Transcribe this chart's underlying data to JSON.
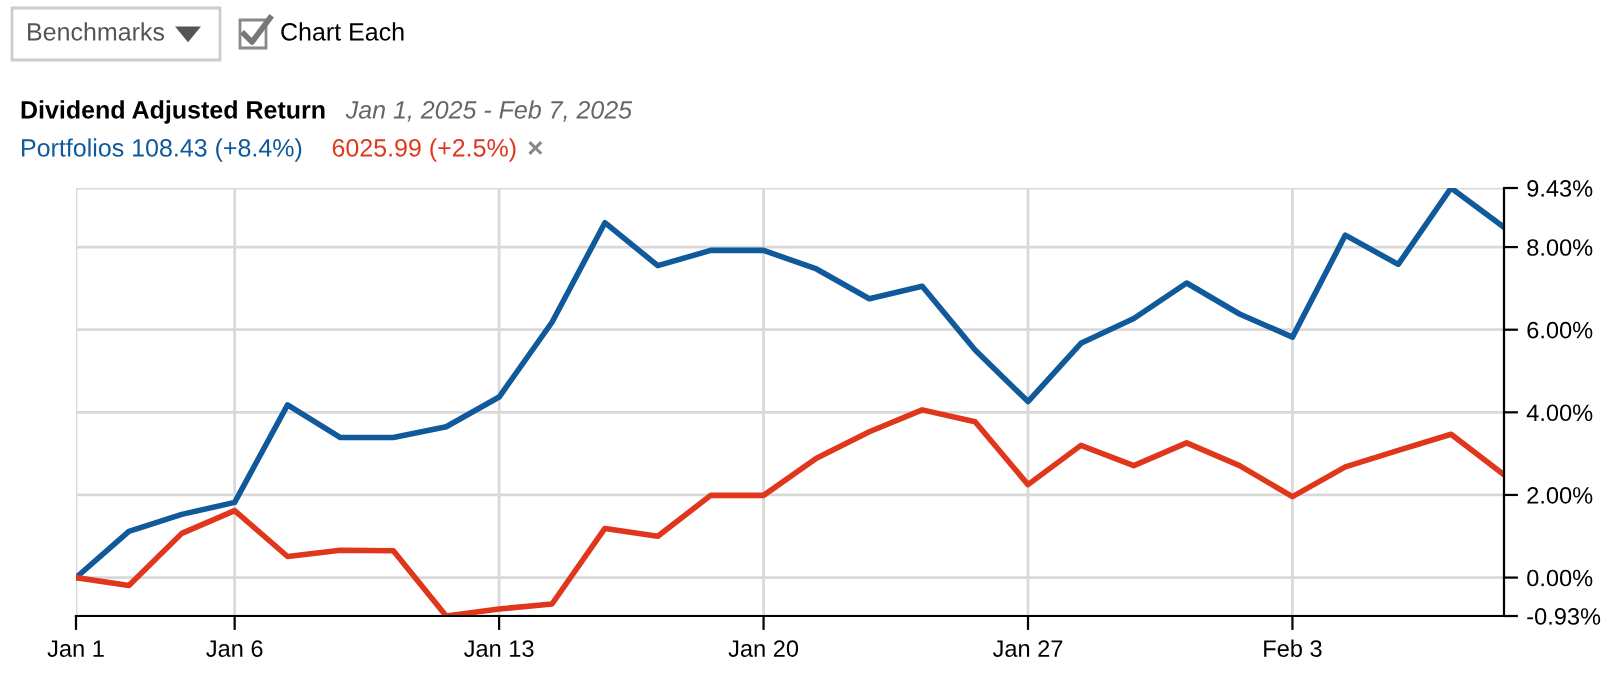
{
  "chart_data": {
    "type": "line",
    "title": "Dividend Adjusted Return",
    "subtitle": "Jan 1, 2025 - Feb 7, 2025",
    "annotations": [
      "Benchmarks",
      "Chart Each",
      "×"
    ],
    "categories": [
      "Jan 1",
      null,
      null,
      "Jan 6",
      null,
      null,
      null,
      null,
      "Jan 13",
      null,
      null,
      null,
      null,
      "Jan 20",
      null,
      null,
      null,
      null,
      "Jan 27",
      null,
      null,
      null,
      null,
      "Feb 3",
      null,
      null,
      null,
      null
    ],
    "series": [
      {
        "name": "Portfolios 108.43 (+8.4%)",
        "color": "#10599a",
        "values": [
          0.0,
          1.12,
          1.53,
          1.82,
          4.18,
          3.39,
          3.39,
          3.65,
          4.37,
          6.18,
          8.59,
          7.55,
          7.92,
          7.92,
          7.47,
          6.75,
          7.05,
          5.51,
          4.26,
          5.67,
          6.27,
          7.13,
          6.38,
          5.82,
          8.29,
          7.58,
          9.43,
          8.48
        ]
      },
      {
        "name": "6025.99 (+2.5%)",
        "color": "#e0361c",
        "values": [
          0.0,
          -0.19,
          1.07,
          1.62,
          0.51,
          0.66,
          0.65,
          -0.93,
          -0.76,
          -0.64,
          1.19,
          1.0,
          1.99,
          1.99,
          2.89,
          3.53,
          4.06,
          3.77,
          2.25,
          3.2,
          2.71,
          3.26,
          2.71,
          1.96,
          2.68,
          3.08,
          3.47,
          2.49
        ]
      }
    ],
    "ylim": [
      -0.93,
      9.43
    ],
    "yticks": [
      {
        "value": -0.93,
        "label": "-0.93%"
      },
      {
        "value": 0,
        "label": "0.00%"
      },
      {
        "value": 2,
        "label": "2.00%"
      },
      {
        "value": 4,
        "label": "4.00%"
      },
      {
        "value": 6,
        "label": "6.00%"
      },
      {
        "value": 8,
        "label": "8.00%"
      },
      {
        "value": 9.43,
        "label": "9.43%"
      }
    ],
    "grid": true,
    "legend": "top left",
    "marker": "none",
    "line_style": "solid"
  }
}
